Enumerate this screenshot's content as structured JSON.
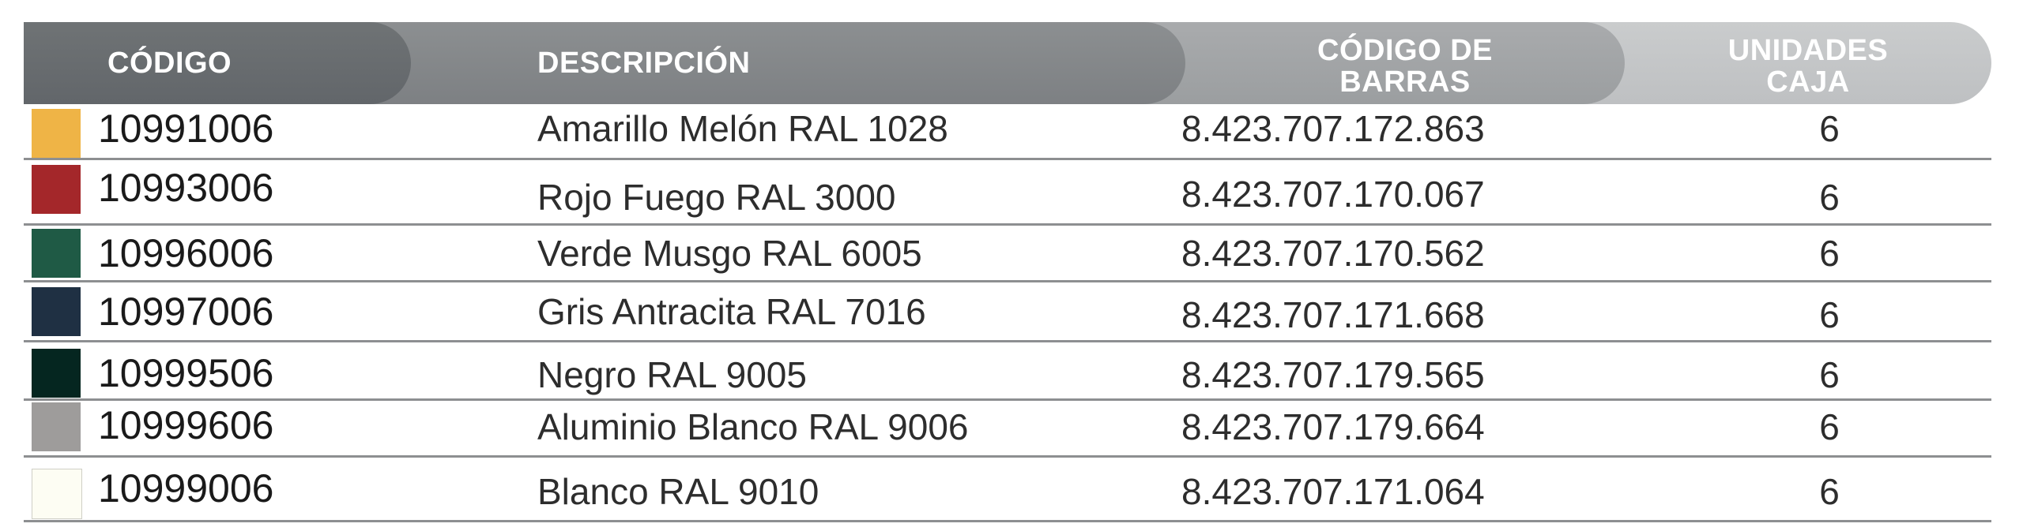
{
  "header": {
    "codigo": "CÓDIGO",
    "descripcion": "DESCRIPCIÓN",
    "codigo_barras_line1": "CÓDIGO DE",
    "codigo_barras_line2": "BARRAS",
    "unidades_line1": "UNIDADES",
    "unidades_line2": "CAJA"
  },
  "rows": [
    {
      "codigo": "10991006",
      "descripcion": "Amarillo Melón RAL 1028",
      "codigo_barras": "8.423.707.172.863",
      "unidades": "6",
      "color": "#efb446"
    },
    {
      "codigo": "10993006",
      "descripcion": "Rojo Fuego RAL 3000",
      "codigo_barras": "8.423.707.170.067",
      "unidades": "6",
      "color": "#a4272a"
    },
    {
      "codigo": "10996006",
      "descripcion": "Verde Musgo RAL 6005",
      "codigo_barras": "8.423.707.170.562",
      "unidades": "6",
      "color": "#1f5a45"
    },
    {
      "codigo": "10997006",
      "descripcion": "Gris Antracita RAL 7016",
      "codigo_barras": "8.423.707.171.668",
      "unidades": "6",
      "color": "#1f3043"
    },
    {
      "codigo": "10999506",
      "descripcion": "Negro RAL 9005",
      "codigo_barras": "8.423.707.179.565",
      "unidades": "6",
      "color": "#052620"
    },
    {
      "codigo": "10999606",
      "descripcion": "Aluminio Blanco RAL 9006",
      "codigo_barras": "8.423.707.179.664",
      "unidades": "6",
      "color": "#9e9c9b"
    },
    {
      "codigo": "10999006",
      "descripcion": "Blanco RAL 9010",
      "codigo_barras": "8.423.707.171.064",
      "unidades": "6",
      "color": "#fdfdf3"
    }
  ]
}
